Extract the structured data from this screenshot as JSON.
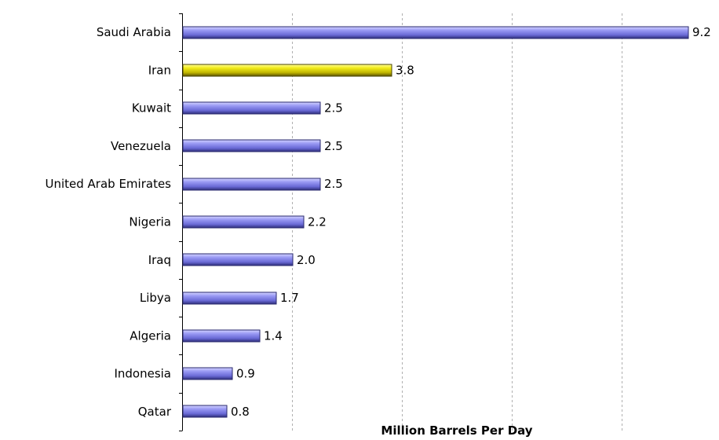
{
  "chart_data": {
    "type": "bar",
    "orientation": "horizontal",
    "categories": [
      "Saudi Arabia",
      "Iran",
      "Kuwait",
      "Venezuela",
      "United Arab Emirates",
      "Nigeria",
      "Iraq",
      "Libya",
      "Algeria",
      "Indonesia",
      "Qatar"
    ],
    "values": [
      9.2,
      3.8,
      2.5,
      2.5,
      2.5,
      2.2,
      2.0,
      1.7,
      1.4,
      0.9,
      0.8
    ],
    "value_labels": [
      "9.2",
      "3.8",
      "2.5",
      "2.5",
      "2.5",
      "2.2",
      "2.0",
      "1.7",
      "1.4",
      "0.9",
      "0.8"
    ],
    "highlight_category": "Iran",
    "xlabel": "Million Barrels Per Day",
    "ylabel": "",
    "xlim": [
      0,
      10
    ],
    "grid": "vertical dashed",
    "colors": {
      "bar": "#8f8ff0",
      "bar_dark": "#2a2a6e",
      "highlight": "#e8e000",
      "highlight_dark": "#4a4400",
      "axis": "#000000",
      "grid": "#b0b0b0"
    }
  }
}
